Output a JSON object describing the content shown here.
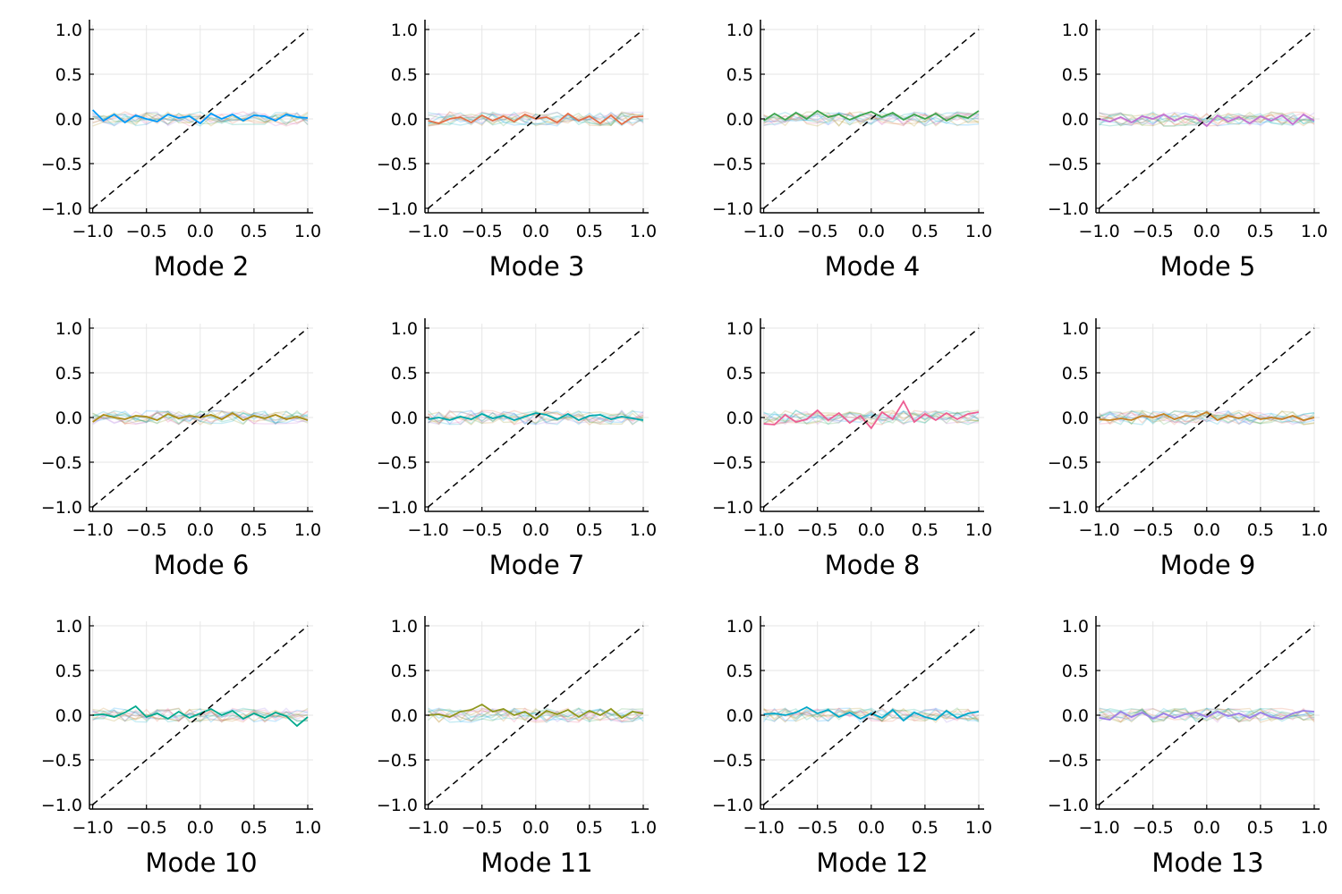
{
  "colors": {
    "highlight": [
      "#009AFA",
      "#E36F47",
      "#3EA44E",
      "#C371D2",
      "#AC8E18",
      "#00A9AD",
      "#ED5E93",
      "#C68225",
      "#00A98D",
      "#8E971E",
      "#00A8CB",
      "#9B7FE9"
    ],
    "reference_line": "#000000",
    "background_traces_opacity": 0.22,
    "grid": "#e6e6e6"
  },
  "chart_data": [
    {
      "type": "line",
      "title": "Mode 2",
      "xlim": [
        -1,
        1
      ],
      "ylim": [
        -1,
        1
      ],
      "xticks": [
        "−1.0",
        "−0.5",
        "0.0",
        "0.5",
        "1.0"
      ],
      "yticks": [
        "−1.0",
        "−0.5",
        "0.0",
        "0.5",
        "1.0"
      ],
      "grid": true,
      "reference_line": "y = x (dashed)",
      "x": [
        -1,
        -0.9,
        -0.8,
        -0.7,
        -0.6,
        -0.5,
        -0.4,
        -0.3,
        -0.2,
        -0.1,
        0,
        0.1,
        0.2,
        0.3,
        0.4,
        0.5,
        0.6,
        0.7,
        0.8,
        0.9,
        1
      ],
      "highlight_values": [
        0.1,
        -0.02,
        0.05,
        -0.04,
        0.04,
        0.0,
        -0.03,
        0.05,
        0.01,
        0.03,
        -0.05,
        0.06,
        0.0,
        0.05,
        -0.02,
        0.04,
        0.03,
        -0.02,
        0.05,
        0.02,
        0.01
      ]
    },
    {
      "type": "line",
      "title": "Mode 3",
      "xlim": [
        -1,
        1
      ],
      "ylim": [
        -1,
        1
      ],
      "xticks": [
        "−1.0",
        "−0.5",
        "0.0",
        "0.5",
        "1.0"
      ],
      "yticks": [
        "−1.0",
        "−0.5",
        "0.0",
        "0.5",
        "1.0"
      ],
      "grid": true,
      "reference_line": "y = x (dashed)",
      "x": [
        -1,
        -0.9,
        -0.8,
        -0.7,
        -0.6,
        -0.5,
        -0.4,
        -0.3,
        -0.2,
        -0.1,
        0,
        0.1,
        0.2,
        0.3,
        0.4,
        0.5,
        0.6,
        0.7,
        0.8,
        0.9,
        1
      ],
      "highlight_values": [
        -0.02,
        -0.05,
        0.0,
        0.02,
        -0.04,
        0.04,
        -0.02,
        0.03,
        -0.03,
        0.05,
        0.0,
        0.02,
        -0.04,
        0.06,
        -0.02,
        0.03,
        -0.05,
        0.04,
        -0.06,
        0.02,
        0.03
      ]
    },
    {
      "type": "line",
      "title": "Mode 4",
      "xlim": [
        -1,
        1
      ],
      "ylim": [
        -1,
        1
      ],
      "xticks": [
        "−1.0",
        "−0.5",
        "0.0",
        "0.5",
        "1.0"
      ],
      "yticks": [
        "−1.0",
        "−0.5",
        "0.0",
        "0.5",
        "1.0"
      ],
      "grid": true,
      "reference_line": "y = x (dashed)",
      "x": [
        -1,
        -0.9,
        -0.8,
        -0.7,
        -0.6,
        -0.5,
        -0.4,
        -0.3,
        -0.2,
        -0.1,
        0,
        0.1,
        0.2,
        0.3,
        0.4,
        0.5,
        0.6,
        0.7,
        0.8,
        0.9,
        1
      ],
      "highlight_values": [
        -0.02,
        0.06,
        -0.01,
        0.07,
        0.0,
        0.09,
        0.02,
        0.05,
        -0.01,
        0.04,
        0.08,
        0.02,
        0.07,
        -0.01,
        0.05,
        0.0,
        0.06,
        -0.02,
        0.04,
        0.01,
        0.09
      ]
    },
    {
      "type": "line",
      "title": "Mode 5",
      "xlim": [
        -1,
        1
      ],
      "ylim": [
        -1,
        1
      ],
      "xticks": [
        "−1.0",
        "−0.5",
        "0.0",
        "0.5",
        "1.0"
      ],
      "yticks": [
        "−1.0",
        "−0.5",
        "0.0",
        "0.5",
        "1.0"
      ],
      "grid": true,
      "reference_line": "y = x (dashed)",
      "x": [
        -1,
        -0.9,
        -0.8,
        -0.7,
        -0.6,
        -0.5,
        -0.4,
        -0.3,
        -0.2,
        -0.1,
        0,
        0.1,
        0.2,
        0.3,
        0.4,
        0.5,
        0.6,
        0.7,
        0.8,
        0.9,
        1
      ],
      "highlight_values": [
        0.0,
        -0.03,
        0.02,
        -0.04,
        0.03,
        0.0,
        0.05,
        -0.02,
        0.03,
        0.01,
        -0.08,
        0.04,
        -0.03,
        0.02,
        -0.05,
        0.03,
        -0.02,
        0.04,
        -0.06,
        0.05,
        -0.02
      ]
    },
    {
      "type": "line",
      "title": "Mode 6",
      "xlim": [
        -1,
        1
      ],
      "ylim": [
        -1,
        1
      ],
      "xticks": [
        "−1.0",
        "−0.5",
        "0.0",
        "0.5",
        "1.0"
      ],
      "yticks": [
        "−1.0",
        "−0.5",
        "0.0",
        "0.5",
        "1.0"
      ],
      "grid": true,
      "reference_line": "y = x (dashed)",
      "x": [
        -1,
        -0.9,
        -0.8,
        -0.7,
        -0.6,
        -0.5,
        -0.4,
        -0.3,
        -0.2,
        -0.1,
        0,
        0.1,
        0.2,
        0.3,
        0.4,
        0.5,
        0.6,
        0.7,
        0.8,
        0.9,
        1
      ],
      "highlight_values": [
        -0.05,
        0.03,
        0.0,
        -0.02,
        0.02,
        0.01,
        -0.03,
        0.04,
        -0.01,
        0.02,
        0.0,
        0.03,
        -0.02,
        0.05,
        -0.03,
        0.02,
        -0.01,
        0.03,
        -0.02,
        0.01,
        -0.03
      ]
    },
    {
      "type": "line",
      "title": "Mode 7",
      "xlim": [
        -1,
        1
      ],
      "ylim": [
        -1,
        1
      ],
      "xticks": [
        "−1.0",
        "−0.5",
        "0.0",
        "0.5",
        "1.0"
      ],
      "yticks": [
        "−1.0",
        "−0.5",
        "0.0",
        "0.5",
        "1.0"
      ],
      "grid": true,
      "reference_line": "y = x (dashed)",
      "x": [
        -1,
        -0.9,
        -0.8,
        -0.7,
        -0.6,
        -0.5,
        -0.4,
        -0.3,
        -0.2,
        -0.1,
        0,
        0.1,
        0.2,
        0.3,
        0.4,
        0.5,
        0.6,
        0.7,
        0.8,
        0.9,
        1
      ],
      "highlight_values": [
        -0.02,
        0.0,
        -0.03,
        0.01,
        -0.02,
        0.04,
        -0.01,
        0.02,
        -0.03,
        0.01,
        0.05,
        0.03,
        -0.02,
        0.04,
        -0.03,
        0.02,
        0.03,
        -0.02,
        0.01,
        -0.01,
        -0.03
      ]
    },
    {
      "type": "line",
      "title": "Mode 8",
      "xlim": [
        -1,
        1
      ],
      "ylim": [
        -1,
        1
      ],
      "xticks": [
        "−1.0",
        "−0.5",
        "0.0",
        "0.5",
        "1.0"
      ],
      "yticks": [
        "−1.0",
        "−0.5",
        "0.0",
        "0.5",
        "1.0"
      ],
      "grid": true,
      "reference_line": "y = x (dashed)",
      "x": [
        -1,
        -0.9,
        -0.8,
        -0.7,
        -0.6,
        -0.5,
        -0.4,
        -0.3,
        -0.2,
        -0.1,
        0,
        0.1,
        0.2,
        0.3,
        0.4,
        0.5,
        0.6,
        0.7,
        0.8,
        0.9,
        1
      ],
      "highlight_values": [
        -0.07,
        -0.08,
        0.03,
        -0.05,
        -0.02,
        0.08,
        -0.03,
        0.05,
        -0.06,
        0.02,
        -0.12,
        0.06,
        -0.02,
        0.18,
        -0.05,
        0.04,
        -0.03,
        0.05,
        -0.02,
        0.04,
        0.06
      ]
    },
    {
      "type": "line",
      "title": "Mode 9",
      "xlim": [
        -1,
        1
      ],
      "ylim": [
        -1,
        1
      ],
      "xticks": [
        "−1.0",
        "−0.5",
        "0.0",
        "0.5",
        "1.0"
      ],
      "yticks": [
        "−1.0",
        "−0.5",
        "0.0",
        "0.5",
        "1.0"
      ],
      "grid": true,
      "reference_line": "y = x (dashed)",
      "x": [
        -1,
        -0.9,
        -0.8,
        -0.7,
        -0.6,
        -0.5,
        -0.4,
        -0.3,
        -0.2,
        -0.1,
        0,
        0.1,
        0.2,
        0.3,
        0.4,
        0.5,
        0.6,
        0.7,
        0.8,
        0.9,
        1
      ],
      "highlight_values": [
        -0.02,
        -0.03,
        -0.01,
        -0.03,
        0.02,
        0.0,
        0.04,
        -0.02,
        0.02,
        0.01,
        0.06,
        -0.03,
        0.02,
        -0.01,
        0.03,
        -0.02,
        0.0,
        -0.02,
        0.02,
        -0.03,
        0.0
      ]
    },
    {
      "type": "line",
      "title": "Mode 10",
      "xlim": [
        -1,
        1
      ],
      "ylim": [
        -1,
        1
      ],
      "xticks": [
        "−1.0",
        "−0.5",
        "0.0",
        "0.5",
        "1.0"
      ],
      "yticks": [
        "−1.0",
        "−0.5",
        "0.0",
        "0.5",
        "1.0"
      ],
      "grid": true,
      "reference_line": "y = x (dashed)",
      "x": [
        -1,
        -0.9,
        -0.8,
        -0.7,
        -0.6,
        -0.5,
        -0.4,
        -0.3,
        -0.2,
        -0.1,
        0,
        0.1,
        0.2,
        0.3,
        0.4,
        0.5,
        0.6,
        0.7,
        0.8,
        0.9,
        1
      ],
      "highlight_values": [
        0.0,
        0.01,
        -0.02,
        0.03,
        0.1,
        -0.02,
        0.02,
        -0.04,
        0.04,
        -0.03,
        0.02,
        0.07,
        0.0,
        0.05,
        -0.04,
        0.02,
        -0.03,
        0.03,
        -0.01,
        -0.12,
        -0.02
      ]
    },
    {
      "type": "line",
      "title": "Mode 11",
      "xlim": [
        -1,
        1
      ],
      "ylim": [
        -1,
        1
      ],
      "xticks": [
        "−1.0",
        "−0.5",
        "0.0",
        "0.5",
        "1.0"
      ],
      "yticks": [
        "−1.0",
        "−0.5",
        "0.0",
        "0.5",
        "1.0"
      ],
      "grid": true,
      "reference_line": "y = x (dashed)",
      "x": [
        -1,
        -0.9,
        -0.8,
        -0.7,
        -0.6,
        -0.5,
        -0.4,
        -0.3,
        -0.2,
        -0.1,
        0,
        0.1,
        0.2,
        0.3,
        0.4,
        0.5,
        0.6,
        0.7,
        0.8,
        0.9,
        1
      ],
      "highlight_values": [
        0.0,
        0.01,
        -0.02,
        0.04,
        0.06,
        0.12,
        0.04,
        0.07,
        0.0,
        0.04,
        -0.04,
        0.05,
        0.01,
        0.06,
        -0.02,
        0.05,
        0.0,
        0.07,
        -0.03,
        0.04,
        0.02
      ]
    },
    {
      "type": "line",
      "title": "Mode 12",
      "xlim": [
        -1,
        1
      ],
      "ylim": [
        -1,
        1
      ],
      "xticks": [
        "−1.0",
        "−0.5",
        "0.0",
        "0.5",
        "1.0"
      ],
      "yticks": [
        "−1.0",
        "−0.5",
        "0.0",
        "0.5",
        "1.0"
      ],
      "grid": true,
      "reference_line": "y = x (dashed)",
      "x": [
        -1,
        -0.9,
        -0.8,
        -0.7,
        -0.6,
        -0.5,
        -0.4,
        -0.3,
        -0.2,
        -0.1,
        0,
        0.1,
        0.2,
        0.3,
        0.4,
        0.5,
        0.6,
        0.7,
        0.8,
        0.9,
        1
      ],
      "highlight_values": [
        0.01,
        0.02,
        0.0,
        0.03,
        0.09,
        0.02,
        0.06,
        -0.02,
        0.03,
        -0.04,
        0.02,
        -0.03,
        0.06,
        -0.06,
        0.03,
        -0.02,
        -0.05,
        0.05,
        -0.03,
        0.02,
        0.04
      ]
    },
    {
      "type": "line",
      "title": "Mode 13",
      "xlim": [
        -1,
        1
      ],
      "ylim": [
        -1,
        1
      ],
      "xticks": [
        "−1.0",
        "−0.5",
        "0.0",
        "0.5",
        "1.0"
      ],
      "yticks": [
        "−1.0",
        "−0.5",
        "0.0",
        "0.5",
        "1.0"
      ],
      "grid": true,
      "reference_line": "y = x (dashed)",
      "x": [
        -1,
        -0.9,
        -0.8,
        -0.7,
        -0.6,
        -0.5,
        -0.4,
        -0.3,
        -0.2,
        -0.1,
        0,
        0.1,
        0.2,
        0.3,
        0.4,
        0.5,
        0.6,
        0.7,
        0.8,
        0.9,
        1
      ],
      "highlight_values": [
        -0.03,
        -0.05,
        0.04,
        -0.02,
        0.03,
        -0.04,
        0.02,
        -0.03,
        0.01,
        0.03,
        -0.02,
        0.04,
        -0.01,
        0.02,
        -0.03,
        0.03,
        -0.02,
        -0.04,
        0.02,
        0.05,
        0.04
      ]
    }
  ]
}
